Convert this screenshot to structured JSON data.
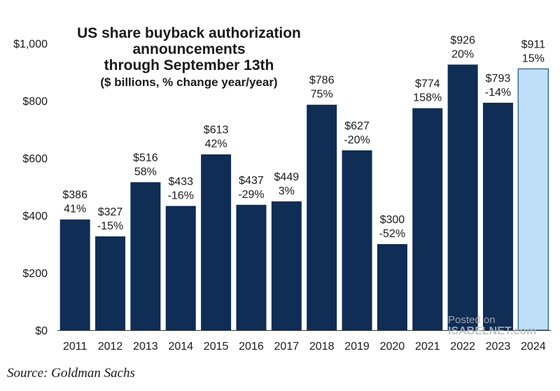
{
  "title_lines": [
    "US share buyback authorization",
    "announcements",
    "through September 13th"
  ],
  "subtitle": "($ billions, % change year/year)",
  "source": "Source: Goldman Sachs",
  "watermark": {
    "line1": "Posted on",
    "line2": "ISABELNET.com"
  },
  "colors": {
    "bar": "#0f2d55",
    "highlight_fill": "#bfdff8",
    "highlight_stroke": "#3a6f9a",
    "text": "#1a1a1a",
    "axis": "#333333"
  },
  "chart_data": {
    "type": "bar",
    "categories": [
      "2011",
      "2012",
      "2013",
      "2014",
      "2015",
      "2016",
      "2017",
      "2018",
      "2019",
      "2020",
      "2021",
      "2022",
      "2023",
      "2024"
    ],
    "values": [
      386,
      327,
      516,
      433,
      613,
      437,
      449,
      786,
      627,
      300,
      774,
      926,
      793,
      911
    ],
    "value_labels": [
      "$386",
      "$327",
      "$516",
      "$433",
      "$613",
      "$437",
      "$449",
      "$786",
      "$627",
      "$300",
      "$774",
      "$926",
      "$793",
      "$911"
    ],
    "pct_labels": [
      "41%",
      "-15%",
      "58%",
      "-16%",
      "42%",
      "-29%",
      "3%",
      "75%",
      "-20%",
      "-52%",
      "158%",
      "20%",
      "-14%",
      "15%"
    ],
    "highlight_index": 13,
    "ylim": [
      0,
      1000
    ],
    "yticks": [
      0,
      200,
      400,
      600,
      800,
      1000
    ],
    "ytick_labels": [
      "$0",
      "$200",
      "$400",
      "$600",
      "$800",
      "$1,000"
    ],
    "grid": false,
    "legend": "none"
  }
}
